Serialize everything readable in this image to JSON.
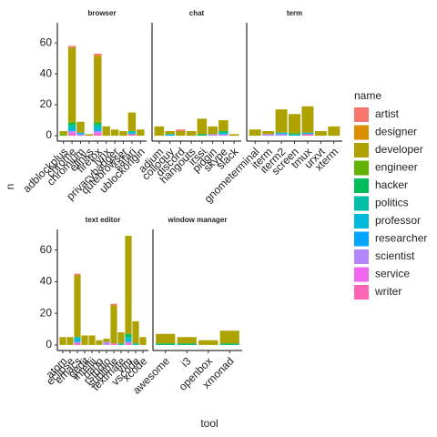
{
  "x_label": "tool",
  "y_label": "n",
  "legend_title": "name",
  "chart_data": [
    {
      "type": "bar",
      "title": "browser",
      "categories": [
        "adblockplus",
        "chrome",
        "chromium",
        "elinks",
        "firefox",
        "lynx",
        "privacybadger",
        "qutebrowser",
        "safari",
        "ublockorigin"
      ],
      "ylim": [
        -3.5,
        73
      ],
      "yticks": [
        0,
        20,
        40,
        60
      ],
      "series": [
        {
          "name": "artist",
          "color": "#F8766D",
          "values": [
            0,
            1,
            0,
            0,
            1,
            0,
            0,
            0,
            0,
            0
          ]
        },
        {
          "name": "designer",
          "color": "#DB8E00",
          "values": [
            0,
            0,
            0,
            0,
            1,
            0,
            0,
            0,
            0,
            0
          ]
        },
        {
          "name": "developer",
          "color": "#AEA200",
          "values": [
            2,
            48,
            7,
            1,
            42,
            6,
            4,
            3,
            12,
            4
          ]
        },
        {
          "name": "engineer",
          "color": "#64B200",
          "values": [
            1,
            1,
            0,
            0,
            1,
            0,
            0,
            0,
            0,
            0
          ]
        },
        {
          "name": "hacker",
          "color": "#00BD5C",
          "values": [
            0,
            1,
            0,
            0,
            1,
            0,
            0,
            0,
            0,
            0
          ]
        },
        {
          "name": "politics",
          "color": "#00C1A7",
          "values": [
            0,
            2,
            0,
            0,
            2,
            0,
            0,
            0,
            1,
            0
          ]
        },
        {
          "name": "professor",
          "color": "#00BADE",
          "values": [
            0,
            2,
            1,
            0,
            1,
            0,
            0,
            0,
            1,
            0
          ]
        },
        {
          "name": "researcher",
          "color": "#00A6FF",
          "values": [
            0,
            0,
            0,
            0,
            1,
            0,
            0,
            0,
            0,
            0
          ]
        },
        {
          "name": "scientist",
          "color": "#B385FF",
          "values": [
            0,
            1,
            1,
            0,
            1,
            0,
            0,
            0,
            0,
            0
          ]
        },
        {
          "name": "service",
          "color": "#EF67EB",
          "values": [
            0,
            1,
            0,
            0,
            1,
            0,
            0,
            0,
            0,
            0
          ]
        },
        {
          "name": "writer",
          "color": "#FF63B6",
          "values": [
            0,
            1,
            0,
            0,
            1,
            0,
            0,
            0,
            1,
            0
          ]
        }
      ]
    },
    {
      "type": "bar",
      "title": "chat",
      "categories": [
        "adium",
        "colloquy",
        "discord",
        "hangouts",
        "irssi",
        "pidgin",
        "skype",
        "slack"
      ],
      "ylim": [
        -3.5,
        73
      ],
      "series": [
        {
          "name": "artist",
          "color": "#F8766D",
          "values": [
            0,
            0,
            1,
            0,
            0,
            0,
            0,
            0
          ]
        },
        {
          "name": "designer",
          "color": "#DB8E00",
          "values": [
            0,
            0,
            0,
            0,
            0,
            0,
            0,
            0
          ]
        },
        {
          "name": "developer",
          "color": "#AEA200",
          "values": [
            6,
            2,
            3,
            3,
            10,
            5,
            7,
            1
          ]
        },
        {
          "name": "engineer",
          "color": "#64B200",
          "values": [
            0,
            0,
            0,
            0,
            0,
            0,
            0,
            0
          ]
        },
        {
          "name": "hacker",
          "color": "#00BD5C",
          "values": [
            0,
            0,
            0,
            0,
            1,
            0,
            1,
            0
          ]
        },
        {
          "name": "politics",
          "color": "#00C1A7",
          "values": [
            0,
            0,
            0,
            0,
            0,
            0,
            0,
            0
          ]
        },
        {
          "name": "professor",
          "color": "#00BADE",
          "values": [
            0,
            1,
            0,
            0,
            0,
            0,
            1,
            0
          ]
        },
        {
          "name": "researcher",
          "color": "#00A6FF",
          "values": [
            0,
            0,
            0,
            0,
            0,
            0,
            0,
            0
          ]
        },
        {
          "name": "scientist",
          "color": "#B385FF",
          "values": [
            0,
            0,
            0,
            0,
            0,
            1,
            1,
            0
          ]
        },
        {
          "name": "service",
          "color": "#EF67EB",
          "values": [
            0,
            0,
            0,
            0,
            0,
            0,
            0,
            0
          ]
        },
        {
          "name": "writer",
          "color": "#FF63B6",
          "values": [
            0,
            0,
            0,
            0,
            0,
            0,
            0,
            0
          ]
        }
      ]
    },
    {
      "type": "bar",
      "title": "term",
      "categories": [
        "gnometerminal",
        "iterm",
        "iterm2",
        "screen",
        "tmux",
        "urxvt",
        "xterm"
      ],
      "ylim": [
        -3.5,
        73
      ],
      "series": [
        {
          "name": "artist",
          "color": "#F8766D",
          "values": [
            0,
            0,
            0,
            0,
            0,
            0,
            0
          ]
        },
        {
          "name": "designer",
          "color": "#DB8E00",
          "values": [
            0,
            0,
            0,
            0,
            0,
            0,
            0
          ]
        },
        {
          "name": "developer",
          "color": "#AEA200",
          "values": [
            4,
            2,
            15,
            12,
            17,
            3,
            6
          ]
        },
        {
          "name": "engineer",
          "color": "#64B200",
          "values": [
            0,
            0,
            0,
            1,
            0,
            0,
            0
          ]
        },
        {
          "name": "hacker",
          "color": "#00BD5C",
          "values": [
            0,
            0,
            0,
            0,
            0,
            0,
            0
          ]
        },
        {
          "name": "politics",
          "color": "#00C1A7",
          "values": [
            0,
            0,
            0,
            0,
            0,
            0,
            0
          ]
        },
        {
          "name": "professor",
          "color": "#00BADE",
          "values": [
            0,
            0,
            1,
            1,
            1,
            0,
            0
          ]
        },
        {
          "name": "researcher",
          "color": "#00A6FF",
          "values": [
            0,
            0,
            0,
            0,
            0,
            0,
            0
          ]
        },
        {
          "name": "scientist",
          "color": "#B385FF",
          "values": [
            0,
            1,
            1,
            0,
            0,
            0,
            0
          ]
        },
        {
          "name": "service",
          "color": "#EF67EB",
          "values": [
            0,
            0,
            0,
            0,
            0,
            0,
            0
          ]
        },
        {
          "name": "writer",
          "color": "#FF63B6",
          "values": [
            0,
            0,
            0,
            0,
            1,
            0,
            0
          ]
        }
      ]
    },
    {
      "type": "bar",
      "title": "text editor",
      "categories": [
        "atom",
        "eclipse",
        "emacs",
        "gedit",
        "intellij",
        "nano",
        "rstudio",
        "sublime",
        "textmate",
        "vim",
        "vscode",
        "xcode"
      ],
      "ylim": [
        -3.5,
        73
      ],
      "yticks": [
        0,
        20,
        40,
        60
      ],
      "series": [
        {
          "name": "artist",
          "color": "#F8766D",
          "values": [
            0,
            0,
            1,
            0,
            0,
            0,
            0,
            1,
            0,
            0,
            0,
            0
          ]
        },
        {
          "name": "designer",
          "color": "#DB8E00",
          "values": [
            0,
            0,
            0,
            0,
            0,
            0,
            0,
            0,
            0,
            0,
            0,
            0
          ]
        },
        {
          "name": "developer",
          "color": "#AEA200",
          "values": [
            5,
            5,
            39,
            6,
            6,
            3,
            2,
            24,
            7,
            62,
            14,
            5
          ]
        },
        {
          "name": "engineer",
          "color": "#64B200",
          "values": [
            0,
            0,
            0,
            0,
            0,
            0,
            0,
            0,
            0,
            0,
            0,
            0
          ]
        },
        {
          "name": "hacker",
          "color": "#00BD5C",
          "values": [
            0,
            0,
            0,
            0,
            0,
            0,
            0,
            0,
            0,
            2,
            0,
            0
          ]
        },
        {
          "name": "politics",
          "color": "#00C1A7",
          "values": [
            0,
            0,
            1,
            0,
            0,
            0,
            0,
            0,
            1,
            1,
            1,
            0
          ]
        },
        {
          "name": "professor",
          "color": "#00BADE",
          "values": [
            0,
            0,
            2,
            0,
            0,
            0,
            0,
            0,
            0,
            2,
            0,
            0
          ]
        },
        {
          "name": "researcher",
          "color": "#00A6FF",
          "values": [
            0,
            0,
            0,
            0,
            0,
            0,
            0,
            0,
            0,
            0,
            0,
            0
          ]
        },
        {
          "name": "scientist",
          "color": "#B385FF",
          "values": [
            0,
            0,
            1,
            0,
            0,
            0,
            2,
            0,
            0,
            1,
            0,
            0
          ]
        },
        {
          "name": "service",
          "color": "#EF67EB",
          "values": [
            0,
            0,
            0,
            0,
            0,
            0,
            0,
            0,
            0,
            0,
            0,
            0
          ]
        },
        {
          "name": "writer",
          "color": "#FF63B6",
          "values": [
            0,
            0,
            1,
            0,
            0,
            0,
            0,
            1,
            0,
            1,
            0,
            0
          ]
        }
      ]
    },
    {
      "type": "bar",
      "title": "window manager",
      "categories": [
        "awesome",
        "i3",
        "openbox",
        "xmonad"
      ],
      "ylim": [
        -3.5,
        73
      ],
      "series": [
        {
          "name": "artist",
          "color": "#F8766D",
          "values": [
            0,
            0,
            0,
            0
          ]
        },
        {
          "name": "designer",
          "color": "#DB8E00",
          "values": [
            0,
            0,
            0,
            0
          ]
        },
        {
          "name": "developer",
          "color": "#AEA200",
          "values": [
            6,
            4,
            3,
            8
          ]
        },
        {
          "name": "engineer",
          "color": "#64B200",
          "values": [
            0,
            0,
            0,
            0
          ]
        },
        {
          "name": "hacker",
          "color": "#00BD5C",
          "values": [
            1,
            1,
            0,
            1
          ]
        },
        {
          "name": "politics",
          "color": "#00C1A7",
          "values": [
            0,
            0,
            0,
            0
          ]
        },
        {
          "name": "professor",
          "color": "#00BADE",
          "values": [
            0,
            0,
            0,
            0
          ]
        },
        {
          "name": "researcher",
          "color": "#00A6FF",
          "values": [
            0,
            0,
            0,
            0
          ]
        },
        {
          "name": "scientist",
          "color": "#B385FF",
          "values": [
            0,
            0,
            0,
            0
          ]
        },
        {
          "name": "service",
          "color": "#EF67EB",
          "values": [
            0,
            0,
            0,
            0
          ]
        },
        {
          "name": "writer",
          "color": "#FF63B6",
          "values": [
            0,
            0,
            0,
            0
          ]
        }
      ]
    }
  ]
}
